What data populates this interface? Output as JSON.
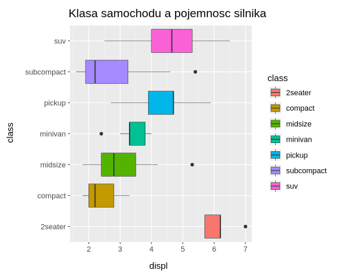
{
  "chart_data": {
    "type": "boxplot",
    "orientation": "horizontal",
    "title": "Klasa samochodu a pojemnosc silnika",
    "xlabel": "displ",
    "ylabel": "class",
    "xlim": [
      1.4,
      7.2
    ],
    "xticks": [
      2,
      3,
      4,
      5,
      6,
      7
    ],
    "grid": true,
    "legend": {
      "title": "class",
      "position": "right",
      "entries": [
        "2seater",
        "compact",
        "midsize",
        "minivan",
        "pickup",
        "subcompact",
        "suv"
      ]
    },
    "categories": [
      "2seater",
      "compact",
      "midsize",
      "minivan",
      "pickup",
      "subcompact",
      "suv"
    ],
    "series": [
      {
        "name": "2seater",
        "color": "#F8766D",
        "whisker_low": 5.7,
        "q1": 5.7,
        "median": 6.2,
        "q3": 6.2,
        "whisker_high": 6.2,
        "outliers": [
          7.0
        ]
      },
      {
        "name": "compact",
        "color": "#C49A00",
        "whisker_low": 1.8,
        "q1": 2.0,
        "median": 2.2,
        "q3": 2.8,
        "whisker_high": 3.3,
        "outliers": []
      },
      {
        "name": "midsize",
        "color": "#53B400",
        "whisker_low": 1.8,
        "q1": 2.4,
        "median": 2.8,
        "q3": 3.5,
        "whisker_high": 4.2,
        "outliers": [
          5.3
        ]
      },
      {
        "name": "minivan",
        "color": "#00C094",
        "whisker_low": 3.0,
        "q1": 3.3,
        "median": 3.3,
        "q3": 3.8,
        "whisker_high": 4.0,
        "outliers": [
          2.4
        ]
      },
      {
        "name": "pickup",
        "color": "#00B6EB",
        "whisker_low": 2.7,
        "q1": 3.9,
        "median": 4.7,
        "q3": 4.7,
        "whisker_high": 5.9,
        "outliers": []
      },
      {
        "name": "subcompact",
        "color": "#A58AFF",
        "whisker_low": 1.6,
        "q1": 1.9,
        "median": 2.2,
        "q3": 3.25,
        "whisker_high": 4.6,
        "outliers": [
          5.4
        ]
      },
      {
        "name": "suv",
        "color": "#FB61D7",
        "whisker_low": 2.5,
        "q1": 4.0,
        "median": 4.65,
        "q3": 5.3,
        "whisker_high": 6.5,
        "outliers": []
      }
    ]
  }
}
